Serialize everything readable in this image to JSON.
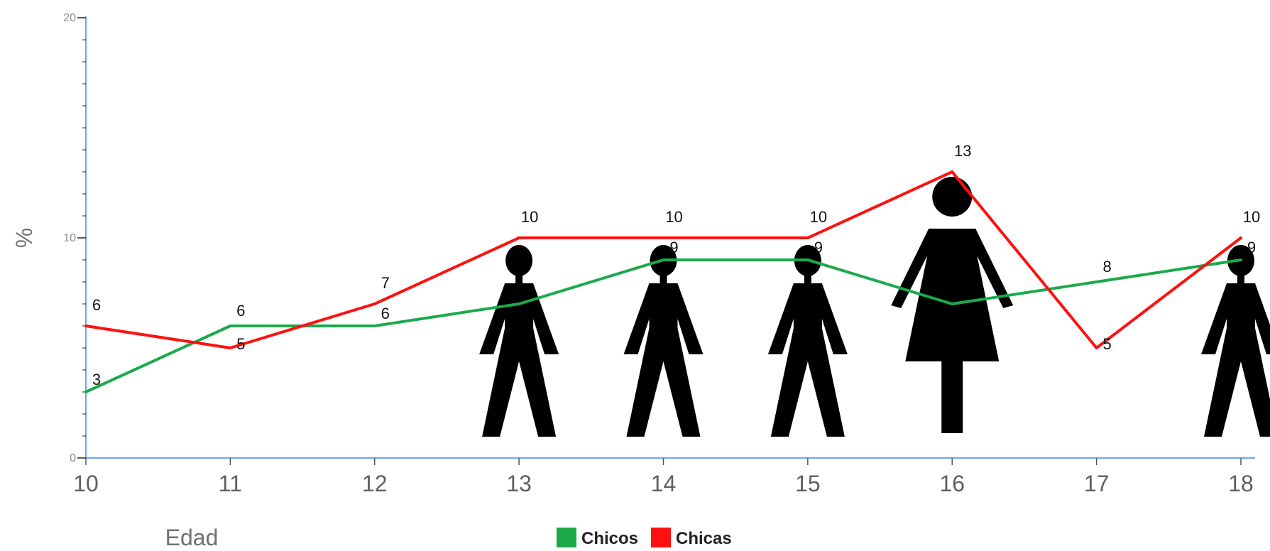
{
  "chart_data": {
    "type": "line",
    "x": [
      10,
      11,
      12,
      13,
      14,
      15,
      16,
      17,
      18
    ],
    "series": [
      {
        "name": "Chicos",
        "color": "#1aaa4a",
        "values": [
          3,
          6,
          6,
          7,
          9,
          9,
          7,
          8,
          9
        ]
      },
      {
        "name": "Chicas",
        "color": "#ff1010",
        "values": [
          6,
          5,
          7,
          10,
          10,
          10,
          13,
          5,
          10
        ]
      }
    ],
    "data_labels": {
      "Chicos": [
        "3",
        "6",
        "6",
        "",
        "9",
        "9",
        "",
        "8",
        "9"
      ],
      "Chicas": [
        "6",
        "5",
        "7",
        "10",
        "10",
        "10",
        "13",
        "5",
        "10"
      ]
    },
    "xlabel": "Edad",
    "ylabel": "%",
    "ylim": [
      0,
      20
    ],
    "yticks": [
      "0",
      "10",
      "20"
    ],
    "xticks": [
      "10",
      "11",
      "12",
      "13",
      "14",
      "15",
      "16",
      "17",
      "18"
    ],
    "grid": false,
    "legend_position": "bottom-center",
    "axis_color": "#6aa8ee",
    "pictograms": [
      {
        "x": 13,
        "icon": "boy-icon"
      },
      {
        "x": 14,
        "icon": "boy-icon"
      },
      {
        "x": 15,
        "icon": "boy-icon"
      },
      {
        "x": 16,
        "icon": "girl-icon"
      },
      {
        "x": 18,
        "icon": "boy-icon"
      }
    ]
  }
}
